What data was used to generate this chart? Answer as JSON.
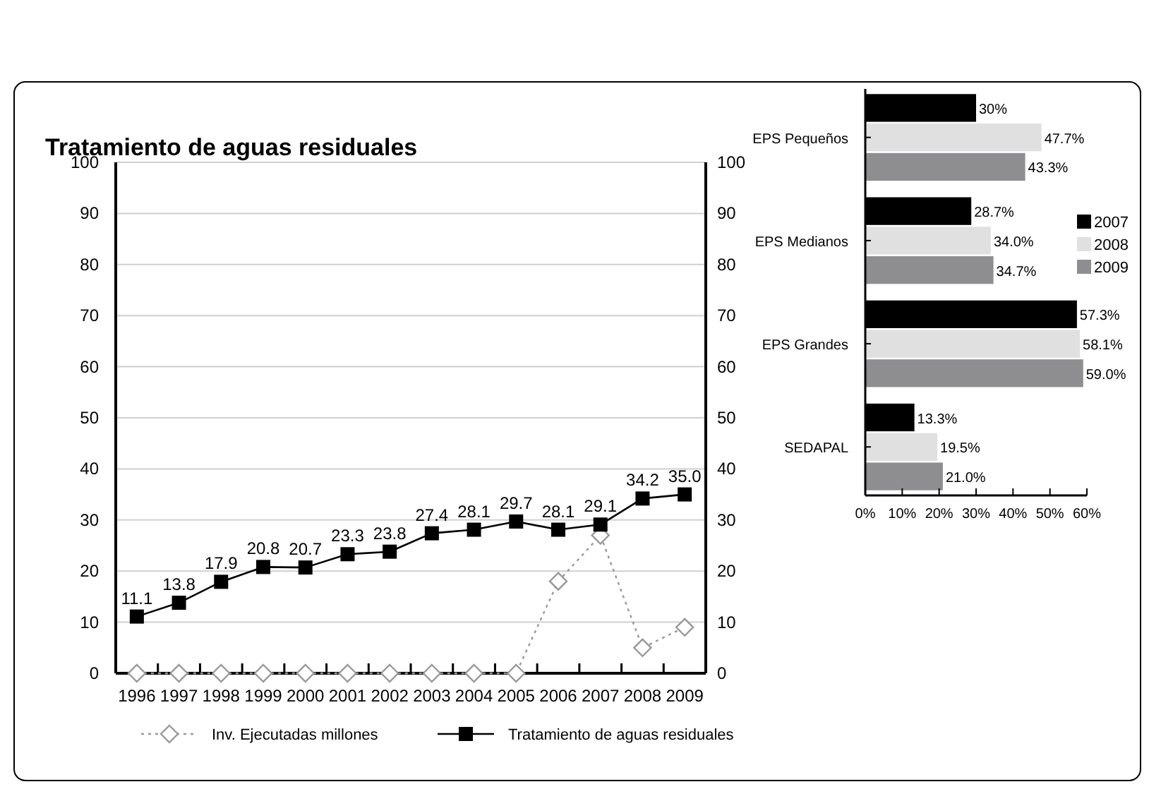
{
  "chart_data": [
    {
      "type": "line",
      "title": "Tratamiento de aguas residuales",
      "categories": [
        "1996",
        "1997",
        "1998",
        "1999",
        "2000",
        "2001",
        "2002",
        "2003",
        "2004",
        "2005",
        "2006",
        "2007",
        "2008",
        "2009"
      ],
      "series": [
        {
          "name": "Inv. Ejecutadas millones",
          "color": "#999999",
          "marker": "diamond",
          "line_style": "dotted",
          "values": [
            0,
            0,
            0,
            0,
            0,
            0,
            0,
            0,
            0,
            0,
            18,
            27,
            5,
            9
          ]
        },
        {
          "name": "Tratamiento de aguas residuales",
          "color": "#000000",
          "marker": "square",
          "line_style": "solid",
          "values": [
            11.1,
            13.8,
            17.9,
            20.8,
            20.7,
            23.3,
            23.8,
            27.4,
            28.1,
            29.7,
            28.1,
            29.1,
            34.2,
            35.0
          ],
          "value_labels": [
            "11.1",
            "13.8",
            "17.9",
            "20.8",
            "20.7",
            "23.3",
            "23.8",
            "27.4",
            "28.1",
            "29.7",
            "28.1",
            "29.1",
            "34.2",
            "35.0"
          ]
        }
      ],
      "ylim": [
        0,
        100
      ],
      "yticks": [
        0,
        10,
        20,
        30,
        40,
        50,
        60,
        70,
        80,
        90,
        100
      ],
      "y2lim": [
        0,
        100
      ],
      "y2ticks": [
        0,
        10,
        20,
        30,
        40,
        50,
        60,
        70,
        80,
        90,
        100
      ],
      "grid": "y",
      "legend": "bottom"
    },
    {
      "type": "bar",
      "orientation": "horizontal",
      "categories": [
        "EPS Pequeños",
        "EPS Medianos",
        "EPS Grandes",
        "SEDAPAL"
      ],
      "series": [
        {
          "name": "2007",
          "color": "#000000",
          "values": [
            30,
            28.7,
            57.3,
            13.3
          ],
          "value_labels": [
            "30%",
            "28.7%",
            "57.3%",
            "13.3%"
          ]
        },
        {
          "name": "2008",
          "color": "#e0e0e0",
          "values": [
            47.7,
            34.0,
            58.1,
            19.5
          ],
          "value_labels": [
            "47.7%",
            "34.0%",
            "58.1%",
            "19.5%"
          ]
        },
        {
          "name": "2009",
          "color": "#8e8e90",
          "values": [
            43.3,
            34.7,
            59.0,
            21.0
          ],
          "value_labels": [
            "43.3%",
            "34.7%",
            "59.0%",
            "21.0%"
          ]
        }
      ],
      "xlim": [
        0,
        60
      ],
      "xticks": [
        {
          "value": 0,
          "label": "0%"
        },
        {
          "value": 10,
          "label": "10%"
        },
        {
          "value": 20,
          "label": "20%"
        },
        {
          "value": 30,
          "label": "30%"
        },
        {
          "value": 40,
          "label": "40%"
        },
        {
          "value": 50,
          "label": "50%"
        },
        {
          "value": 60,
          "label": "60%"
        }
      ],
      "legend": "right"
    }
  ]
}
